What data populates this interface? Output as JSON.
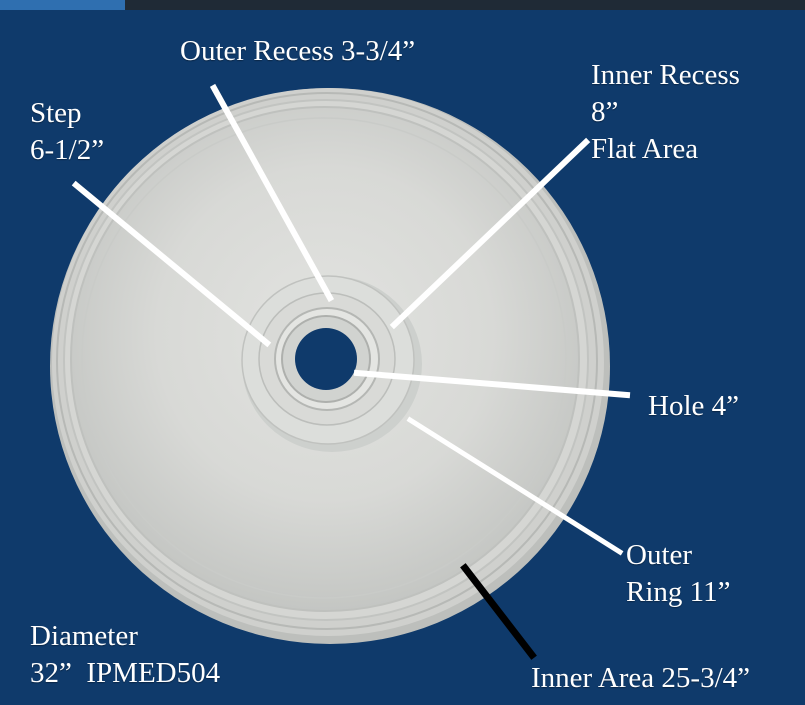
{
  "colors": {
    "background": "#0f3a6b",
    "medallion": "#d7d8d5",
    "hole": "#0f3a6b",
    "pointer_white": "#ffffff",
    "pointer_black": "#000000",
    "label_text": "#ffffff"
  },
  "image": {
    "subject": "ceiling-medallion"
  },
  "labels": {
    "outer_recess": "Outer Recess 3-3/4”",
    "inner_recess": {
      "line1": "Inner Recess",
      "line2": "8”",
      "line3": "Flat Area"
    },
    "step": {
      "line1": "Step",
      "line2": "6-1/2”"
    },
    "hole": "Hole 4”",
    "outer_ring": {
      "line1": "Outer",
      "line2": "Ring 11”"
    },
    "diameter": {
      "line1": "Diameter",
      "line2": "32”  IPMED504"
    },
    "inner_area": "Inner Area 25-3/4”"
  }
}
